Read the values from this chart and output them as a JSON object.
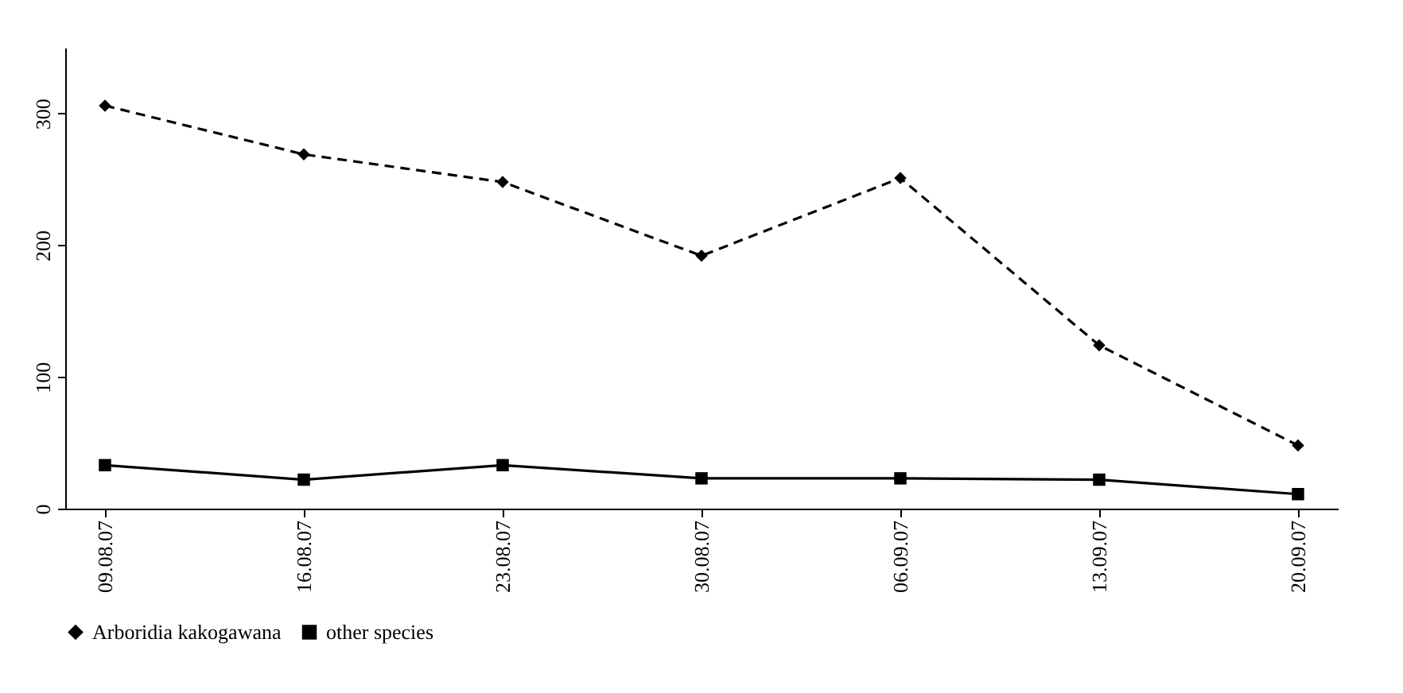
{
  "chart_data": {
    "type": "line",
    "categories": [
      "09.08.07",
      "16.08.07",
      "23.08.07",
      "30.08.07",
      "06.09.07",
      "13.09.07",
      "20.09.07"
    ],
    "series": [
      {
        "name": "Arboridia kakogawana",
        "color": "#000000",
        "marker": "diamond",
        "line_style": "dashed",
        "values": [
          306,
          269,
          248,
          192,
          251,
          124,
          48
        ]
      },
      {
        "name": "other species",
        "color": "#000000",
        "marker": "square",
        "line_style": "solid",
        "values": [
          33,
          22,
          33,
          23,
          23,
          22,
          11
        ]
      }
    ],
    "ylim": [
      0,
      350
    ],
    "yticks": [
      0,
      100,
      200,
      300
    ],
    "grid": false,
    "legend": "bottom"
  }
}
